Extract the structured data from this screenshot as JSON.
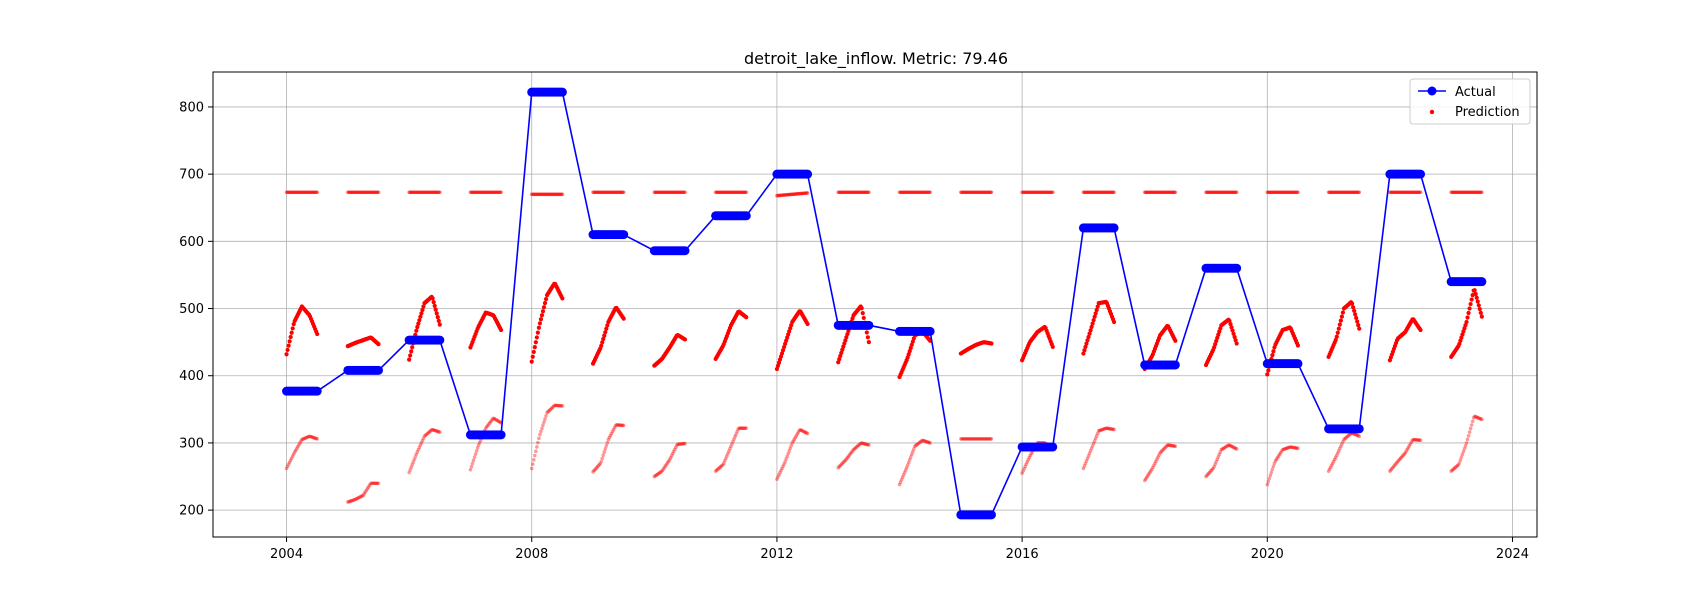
{
  "chart_data": {
    "type": "line",
    "title": "detroit_lake_inflow. Metric: 79.46",
    "xlabel": "",
    "ylabel": "",
    "xlim": [
      2002.8,
      2024.4
    ],
    "ylim": [
      160,
      852
    ],
    "x_ticks": [
      2004,
      2008,
      2012,
      2016,
      2020,
      2024
    ],
    "x_tick_labels": [
      "2004",
      "2008",
      "2012",
      "2016",
      "2020",
      "2024"
    ],
    "y_ticks": [
      200,
      300,
      400,
      500,
      600,
      700,
      800
    ],
    "y_tick_labels": [
      "200",
      "300",
      "400",
      "500",
      "600",
      "700",
      "800"
    ],
    "grid": true,
    "legend_position": "top-right",
    "colors": {
      "actual": "#0000ff",
      "prediction": "#ff0000"
    },
    "series": [
      {
        "name": "Actual",
        "style": "line-with-markers",
        "segments": [
          {
            "start": 2004.0,
            "end": 2004.5,
            "value": 377
          },
          {
            "start": 2005.0,
            "end": 2005.5,
            "value": 408
          },
          {
            "start": 2006.0,
            "end": 2006.5,
            "value": 453
          },
          {
            "start": 2007.0,
            "end": 2007.5,
            "value": 312
          },
          {
            "start": 2008.0,
            "end": 2008.5,
            "value": 822
          },
          {
            "start": 2009.0,
            "end": 2009.5,
            "value": 610
          },
          {
            "start": 2010.0,
            "end": 2010.5,
            "value": 586
          },
          {
            "start": 2011.0,
            "end": 2011.5,
            "value": 638
          },
          {
            "start": 2012.0,
            "end": 2012.5,
            "value": 700
          },
          {
            "start": 2013.0,
            "end": 2013.5,
            "value": 475
          },
          {
            "start": 2014.0,
            "end": 2014.5,
            "value": 466
          },
          {
            "start": 2015.0,
            "end": 2015.5,
            "value": 193
          },
          {
            "start": 2016.0,
            "end": 2016.5,
            "value": 294
          },
          {
            "start": 2017.0,
            "end": 2017.5,
            "value": 620
          },
          {
            "start": 2018.0,
            "end": 2018.5,
            "value": 416
          },
          {
            "start": 2019.0,
            "end": 2019.5,
            "value": 560
          },
          {
            "start": 2020.0,
            "end": 2020.5,
            "value": 418
          },
          {
            "start": 2021.0,
            "end": 2021.5,
            "value": 321
          },
          {
            "start": 2022.0,
            "end": 2022.5,
            "value": 700
          },
          {
            "start": 2023.0,
            "end": 2023.5,
            "value": 540
          }
        ]
      },
      {
        "name": "Prediction",
        "style": "scatter",
        "bands": [
          {
            "level": "upper",
            "opacity": 0.5,
            "curves": [
              {
                "start": 2004.0,
                "end": 2004.5,
                "values": [
                  673,
                  673
                ]
              },
              {
                "start": 2005.0,
                "end": 2005.5,
                "values": [
                  673,
                  673
                ]
              },
              {
                "start": 2006.0,
                "end": 2006.5,
                "values": [
                  673,
                  673
                ]
              },
              {
                "start": 2007.0,
                "end": 2007.5,
                "values": [
                  673,
                  673
                ]
              },
              {
                "start": 2008.0,
                "end": 2008.5,
                "values": [
                  670,
                  670
                ]
              },
              {
                "start": 2009.0,
                "end": 2009.5,
                "values": [
                  673,
                  673
                ]
              },
              {
                "start": 2010.0,
                "end": 2010.5,
                "values": [
                  673,
                  673
                ]
              },
              {
                "start": 2011.0,
                "end": 2011.5,
                "values": [
                  673,
                  673
                ]
              },
              {
                "start": 2012.0,
                "end": 2012.5,
                "values": [
                  668,
                  672
                ]
              },
              {
                "start": 2013.0,
                "end": 2013.5,
                "values": [
                  673,
                  673
                ]
              },
              {
                "start": 2014.0,
                "end": 2014.5,
                "values": [
                  673,
                  673
                ]
              },
              {
                "start": 2015.0,
                "end": 2015.5,
                "values": [
                  673,
                  673
                ]
              },
              {
                "start": 2016.0,
                "end": 2016.5,
                "values": [
                  673,
                  673
                ]
              },
              {
                "start": 2017.0,
                "end": 2017.5,
                "values": [
                  673,
                  673
                ]
              },
              {
                "start": 2018.0,
                "end": 2018.5,
                "values": [
                  673,
                  673
                ]
              },
              {
                "start": 2019.0,
                "end": 2019.5,
                "values": [
                  673,
                  673
                ]
              },
              {
                "start": 2020.0,
                "end": 2020.5,
                "values": [
                  673,
                  673
                ]
              },
              {
                "start": 2021.0,
                "end": 2021.5,
                "values": [
                  673,
                  673
                ]
              },
              {
                "start": 2022.0,
                "end": 2022.5,
                "values": [
                  673,
                  673
                ]
              },
              {
                "start": 2023.0,
                "end": 2023.5,
                "values": [
                  673,
                  673
                ]
              }
            ]
          },
          {
            "level": "middle",
            "opacity": 1.0,
            "curves": [
              {
                "start": 2004.0,
                "end": 2004.5,
                "values": [
                  432,
                  480,
                  503,
                  490,
                  462
                ]
              },
              {
                "start": 2005.0,
                "end": 2005.5,
                "values": [
                  444,
                  449,
                  453,
                  457,
                  447
                ]
              },
              {
                "start": 2006.0,
                "end": 2006.5,
                "values": [
                  424,
                  470,
                  508,
                  518,
                  476
                ]
              },
              {
                "start": 2007.0,
                "end": 2007.5,
                "values": [
                  442,
                  472,
                  494,
                  490,
                  468
                ]
              },
              {
                "start": 2008.0,
                "end": 2008.5,
                "values": [
                  421,
                  475,
                  520,
                  538,
                  515
                ]
              },
              {
                "start": 2009.0,
                "end": 2009.5,
                "values": [
                  418,
                  442,
                  480,
                  502,
                  485
                ]
              },
              {
                "start": 2010.0,
                "end": 2010.5,
                "values": [
                  415,
                  425,
                  442,
                  461,
                  454
                ]
              },
              {
                "start": 2011.0,
                "end": 2011.5,
                "values": [
                  425,
                  445,
                  475,
                  496,
                  487
                ]
              },
              {
                "start": 2012.0,
                "end": 2012.5,
                "values": [
                  410,
                  445,
                  480,
                  497,
                  477
                ]
              },
              {
                "start": 2013.0,
                "end": 2013.5,
                "values": [
                  420,
                  455,
                  490,
                  504,
                  450
                ]
              },
              {
                "start": 2014.0,
                "end": 2014.5,
                "values": [
                  398,
                  425,
                  460,
                  466,
                  452
                ]
              },
              {
                "start": 2015.0,
                "end": 2015.5,
                "values": [
                  433,
                  440,
                  446,
                  450,
                  448
                ]
              },
              {
                "start": 2016.0,
                "end": 2016.5,
                "values": [
                  423,
                  450,
                  465,
                  473,
                  443
                ]
              },
              {
                "start": 2017.0,
                "end": 2017.5,
                "values": [
                  433,
                  470,
                  508,
                  510,
                  480
                ]
              },
              {
                "start": 2018.0,
                "end": 2018.5,
                "values": [
                  410,
                  430,
                  460,
                  475,
                  452
                ]
              },
              {
                "start": 2019.0,
                "end": 2019.5,
                "values": [
                  416,
                  440,
                  475,
                  484,
                  448
                ]
              },
              {
                "start": 2020.0,
                "end": 2020.5,
                "values": [
                  402,
                  445,
                  468,
                  472,
                  445
                ]
              },
              {
                "start": 2021.0,
                "end": 2021.5,
                "values": [
                  428,
                  455,
                  500,
                  510,
                  470
                ]
              },
              {
                "start": 2022.0,
                "end": 2022.5,
                "values": [
                  423,
                  455,
                  465,
                  485,
                  468
                ]
              },
              {
                "start": 2023.0,
                "end": 2023.5,
                "values": [
                  428,
                  445,
                  480,
                  530,
                  488
                ]
              }
            ]
          },
          {
            "level": "lower",
            "opacity": 0.4,
            "curves": [
              {
                "start": 2004.0,
                "end": 2004.5,
                "values": [
                  262,
                  285,
                  305,
                  310,
                  306
                ]
              },
              {
                "start": 2005.0,
                "end": 2005.5,
                "values": [
                  212,
                  216,
                  222,
                  240,
                  240
                ]
              },
              {
                "start": 2006.0,
                "end": 2006.5,
                "values": [
                  256,
                  285,
                  310,
                  320,
                  316
                ]
              },
              {
                "start": 2007.0,
                "end": 2007.5,
                "values": [
                  260,
                  295,
                  322,
                  337,
                  330
                ]
              },
              {
                "start": 2008.0,
                "end": 2008.5,
                "values": [
                  262,
                  310,
                  345,
                  356,
                  355
                ]
              },
              {
                "start": 2009.0,
                "end": 2009.5,
                "values": [
                  257,
                  270,
                  305,
                  327,
                  326
                ]
              },
              {
                "start": 2010.0,
                "end": 2010.5,
                "values": [
                  250,
                  258,
                  275,
                  298,
                  299
                ]
              },
              {
                "start": 2011.0,
                "end": 2011.5,
                "values": [
                  258,
                  268,
                  295,
                  322,
                  322
                ]
              },
              {
                "start": 2012.0,
                "end": 2012.5,
                "values": [
                  246,
                  270,
                  300,
                  320,
                  314
                ]
              },
              {
                "start": 2013.0,
                "end": 2013.5,
                "values": [
                  263,
                  275,
                  290,
                  300,
                  297
                ]
              },
              {
                "start": 2014.0,
                "end": 2014.5,
                "values": [
                  238,
                  265,
                  295,
                  304,
                  300
                ]
              },
              {
                "start": 2015.0,
                "end": 2015.5,
                "values": [
                  306,
                  306,
                  306,
                  306,
                  306
                ]
              },
              {
                "start": 2016.0,
                "end": 2016.5,
                "values": [
                  255,
                  280,
                  300,
                  300,
                  293
                ]
              },
              {
                "start": 2017.0,
                "end": 2017.5,
                "values": [
                  262,
                  290,
                  318,
                  322,
                  320
                ]
              },
              {
                "start": 2018.0,
                "end": 2018.5,
                "values": [
                  244,
                  262,
                  285,
                  297,
                  295
                ]
              },
              {
                "start": 2019.0,
                "end": 2019.5,
                "values": [
                  250,
                  263,
                  290,
                  297,
                  291
                ]
              },
              {
                "start": 2020.0,
                "end": 2020.5,
                "values": [
                  238,
                  272,
                  290,
                  294,
                  292
                ]
              },
              {
                "start": 2021.0,
                "end": 2021.5,
                "values": [
                  258,
                  280,
                  305,
                  315,
                  310
                ]
              },
              {
                "start": 2022.0,
                "end": 2022.5,
                "values": [
                  258,
                  272,
                  285,
                  305,
                  304
                ]
              },
              {
                "start": 2023.0,
                "end": 2023.5,
                "values": [
                  258,
                  268,
                  300,
                  340,
                  335
                ]
              }
            ]
          }
        ]
      }
    ]
  }
}
